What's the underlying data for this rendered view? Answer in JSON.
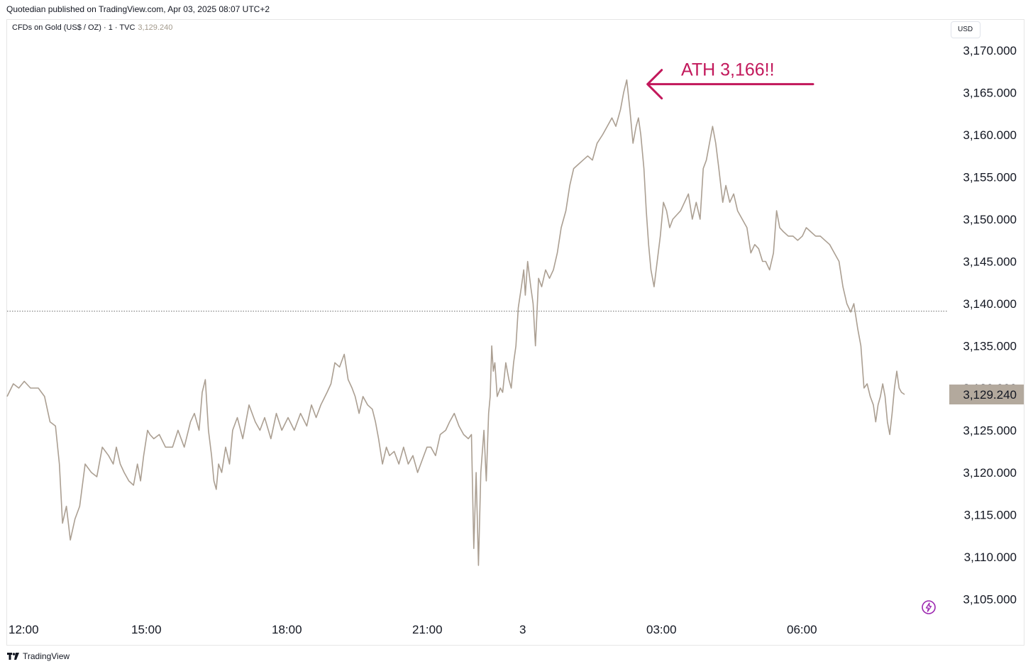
{
  "header": {
    "published": "Quotedian published on TradingView.com, Apr 03, 2025 08:07 UTC+2"
  },
  "symbol": {
    "name": "CFDs on Gold (US$ / OZ) · 1 · TVC",
    "last_price": "3,129.240"
  },
  "currency_label": "USD",
  "footer": {
    "brand": "TradingView"
  },
  "colors": {
    "series": "#ab9f92",
    "annotation": "#c2185b",
    "price_label_bg": "#b3a99d",
    "icon": "#9c27b0"
  },
  "icons": {
    "brand": "tradingview-logo-icon",
    "lightning": "lightning-icon"
  },
  "chart_data": {
    "type": "line",
    "ylim": [
      3103,
      3172
    ],
    "y_ticks": [
      3105,
      3110,
      3115,
      3120,
      3125,
      3130,
      3135,
      3140,
      3145,
      3150,
      3155,
      3160,
      3165,
      3170
    ],
    "y_tick_labels": [
      "3,105.000",
      "3,110.000",
      "3,115.000",
      "3,120.000",
      "3,125.000",
      "3,130.000",
      "3,135.000",
      "3,140.000",
      "3,145.000",
      "3,150.000",
      "3,155.000",
      "3,160.000",
      "3,165.000",
      "3,170.000"
    ],
    "x_tick_labels": [
      {
        "label": "12:00",
        "t": 0
      },
      {
        "label": "15:00",
        "t": 180
      },
      {
        "label": "18:00",
        "t": 360
      },
      {
        "label": "21:00",
        "t": 540
      },
      {
        "label": "3",
        "t": 660
      },
      {
        "label": "03:00",
        "t": 840
      },
      {
        "label": "06:00",
        "t": 1020
      }
    ],
    "reference_line": 3139.1,
    "last_value_label": "3,129.240",
    "last_value": 3129.24,
    "annotation": {
      "text": "ATH 3,166!!",
      "t": 797,
      "value": 3166.5
    },
    "series": [
      {
        "points": [
          [
            0,
            3129
          ],
          [
            8,
            3130.5
          ],
          [
            15,
            3130
          ],
          [
            22,
            3130.8
          ],
          [
            30,
            3130
          ],
          [
            40,
            3130
          ],
          [
            48,
            3129
          ],
          [
            55,
            3126
          ],
          [
            62,
            3125.5
          ],
          [
            67,
            3121
          ],
          [
            71,
            3114
          ],
          [
            76,
            3116
          ],
          [
            81,
            3112
          ],
          [
            87,
            3114.5
          ],
          [
            93,
            3116
          ],
          [
            100,
            3121
          ],
          [
            108,
            3120
          ],
          [
            115,
            3119.5
          ],
          [
            122,
            3123
          ],
          [
            130,
            3122
          ],
          [
            136,
            3121
          ],
          [
            140,
            3123
          ],
          [
            145,
            3121
          ],
          [
            150,
            3120
          ],
          [
            156,
            3119
          ],
          [
            162,
            3118.5
          ],
          [
            167,
            3121
          ],
          [
            171,
            3119
          ],
          [
            175,
            3122
          ],
          [
            180,
            3125
          ],
          [
            183,
            3124.5
          ],
          [
            188,
            3124
          ],
          [
            195,
            3124.5
          ],
          [
            203,
            3123
          ],
          [
            212,
            3123
          ],
          [
            219,
            3125
          ],
          [
            227,
            3123
          ],
          [
            235,
            3126
          ],
          [
            240,
            3127
          ],
          [
            246,
            3125
          ],
          [
            250,
            3129.5
          ],
          [
            254,
            3131
          ],
          [
            258,
            3125
          ],
          [
            262,
            3122
          ],
          [
            265,
            3119
          ],
          [
            268,
            3118
          ],
          [
            271,
            3121
          ],
          [
            275,
            3120
          ],
          [
            280,
            3123
          ],
          [
            285,
            3121
          ],
          [
            289,
            3125
          ],
          [
            295,
            3126.5
          ],
          [
            302,
            3124
          ],
          [
            310,
            3128
          ],
          [
            318,
            3126
          ],
          [
            324,
            3125
          ],
          [
            330,
            3126.5
          ],
          [
            338,
            3124
          ],
          [
            345,
            3127
          ],
          [
            352,
            3125
          ],
          [
            360,
            3126.5
          ],
          [
            368,
            3125
          ],
          [
            376,
            3127
          ],
          [
            384,
            3125.5
          ],
          [
            390,
            3128
          ],
          [
            396,
            3126.5
          ],
          [
            402,
            3128
          ],
          [
            410,
            3129.5
          ],
          [
            415,
            3130.5
          ],
          [
            420,
            3133
          ],
          [
            426,
            3132.5
          ],
          [
            432,
            3134
          ],
          [
            437,
            3131
          ],
          [
            442,
            3130
          ],
          [
            446,
            3129
          ],
          [
            451,
            3127
          ],
          [
            456,
            3129
          ],
          [
            462,
            3128
          ],
          [
            468,
            3127.5
          ],
          [
            472,
            3126
          ],
          [
            476,
            3124
          ],
          [
            481,
            3121
          ],
          [
            486,
            3123
          ],
          [
            490,
            3122
          ],
          [
            496,
            3122.5
          ],
          [
            502,
            3121
          ],
          [
            508,
            3123
          ],
          [
            514,
            3121
          ],
          [
            520,
            3122
          ],
          [
            526,
            3120
          ],
          [
            532,
            3121.5
          ],
          [
            538,
            3123
          ],
          [
            543,
            3123
          ],
          [
            549,
            3122
          ],
          [
            555,
            3124.5
          ],
          [
            562,
            3125
          ],
          [
            567,
            3126
          ],
          [
            573,
            3127
          ],
          [
            579,
            3125.5
          ],
          [
            585,
            3124.5
          ],
          [
            591,
            3124
          ],
          [
            595,
            3124.5
          ],
          [
            598,
            3111
          ],
          [
            601,
            3120
          ],
          [
            604,
            3109
          ],
          [
            607,
            3120
          ],
          [
            611,
            3125
          ],
          [
            614,
            3119
          ],
          [
            617,
            3127
          ],
          [
            619,
            3129
          ],
          [
            621,
            3135
          ],
          [
            623,
            3132
          ],
          [
            625,
            3133
          ],
          [
            628,
            3129
          ],
          [
            632,
            3130
          ],
          [
            635,
            3129.5
          ],
          [
            639,
            3133
          ],
          [
            643,
            3131
          ],
          [
            646,
            3130
          ],
          [
            649,
            3133
          ],
          [
            652,
            3135
          ],
          [
            655,
            3139.5
          ],
          [
            659,
            3142
          ],
          [
            662,
            3144
          ],
          [
            664,
            3141
          ],
          [
            667,
            3145
          ],
          [
            671,
            3142
          ],
          [
            674,
            3140
          ],
          [
            677,
            3135
          ],
          [
            681,
            3143
          ],
          [
            685,
            3142
          ],
          [
            690,
            3144
          ],
          [
            695,
            3143
          ],
          [
            700,
            3144
          ],
          [
            705,
            3146
          ],
          [
            710,
            3149
          ],
          [
            716,
            3151
          ],
          [
            721,
            3154
          ],
          [
            726,
            3156
          ],
          [
            732,
            3156.5
          ],
          [
            738,
            3157
          ],
          [
            744,
            3157.5
          ],
          [
            750,
            3157
          ],
          [
            756,
            3159
          ],
          [
            763,
            3160
          ],
          [
            769,
            3161
          ],
          [
            775,
            3162
          ],
          [
            780,
            3161
          ],
          [
            786,
            3163
          ],
          [
            790,
            3165
          ],
          [
            794,
            3166.5
          ],
          [
            798,
            3163
          ],
          [
            802,
            3159
          ],
          [
            806,
            3161
          ],
          [
            809,
            3162
          ],
          [
            812,
            3160
          ],
          [
            816,
            3156
          ],
          [
            819,
            3151
          ],
          [
            822,
            3147
          ],
          [
            825,
            3144
          ],
          [
            829,
            3142
          ],
          [
            833,
            3145
          ],
          [
            837,
            3148
          ],
          [
            841,
            3152
          ],
          [
            845,
            3151
          ],
          [
            849,
            3149
          ],
          [
            853,
            3150
          ],
          [
            858,
            3150.5
          ],
          [
            863,
            3151
          ],
          [
            868,
            3152
          ],
          [
            873,
            3153
          ],
          [
            878,
            3150
          ],
          [
            883,
            3152
          ],
          [
            888,
            3150
          ],
          [
            892,
            3156
          ],
          [
            896,
            3157
          ],
          [
            900,
            3159
          ],
          [
            904,
            3161
          ],
          [
            908,
            3159
          ],
          [
            912,
            3156
          ],
          [
            917,
            3152
          ],
          [
            921,
            3154
          ],
          [
            926,
            3152
          ],
          [
            931,
            3153
          ],
          [
            936,
            3151
          ],
          [
            942,
            3150
          ],
          [
            948,
            3149
          ],
          [
            953,
            3146
          ],
          [
            958,
            3147
          ],
          [
            963,
            3146.5
          ],
          [
            968,
            3145
          ],
          [
            972,
            3145
          ],
          [
            977,
            3144
          ],
          [
            982,
            3146
          ],
          [
            986,
            3151
          ],
          [
            990,
            3149
          ],
          [
            995,
            3148.5
          ],
          [
            1001,
            3148
          ],
          [
            1007,
            3148
          ],
          [
            1013,
            3147.5
          ],
          [
            1019,
            3148
          ],
          [
            1024,
            3149
          ],
          [
            1030,
            3148.5
          ],
          [
            1036,
            3148
          ],
          [
            1042,
            3148
          ],
          [
            1048,
            3147.5
          ],
          [
            1054,
            3147
          ],
          [
            1060,
            3146
          ],
          [
            1066,
            3145
          ],
          [
            1071,
            3142
          ],
          [
            1076,
            3140
          ],
          [
            1081,
            3139
          ],
          [
            1085,
            3140
          ],
          [
            1090,
            3137
          ],
          [
            1094,
            3135
          ],
          [
            1098,
            3130
          ],
          [
            1102,
            3130.5
          ],
          [
            1106,
            3129
          ],
          [
            1110,
            3128
          ],
          [
            1113,
            3126
          ],
          [
            1116,
            3128
          ],
          [
            1119,
            3129
          ],
          [
            1122,
            3130.5
          ],
          [
            1125,
            3129
          ],
          [
            1128,
            3126
          ],
          [
            1131,
            3124.5
          ],
          [
            1134,
            3127
          ],
          [
            1137,
            3130
          ],
          [
            1140,
            3132
          ],
          [
            1143,
            3130
          ],
          [
            1146,
            3129.5
          ],
          [
            1150,
            3129.24
          ]
        ]
      }
    ]
  }
}
